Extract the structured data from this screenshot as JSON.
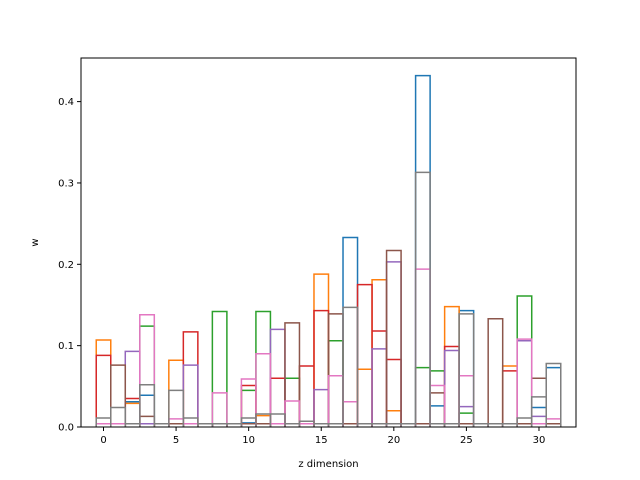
{
  "chart_data": {
    "type": "histogram",
    "title": "",
    "xlabel": "z dimension",
    "ylabel": "w",
    "x_ticks": [
      0,
      5,
      10,
      15,
      20,
      25,
      30
    ],
    "y_ticks": [
      0.0,
      0.1,
      0.2,
      0.3,
      0.4
    ],
    "y_tick_labels": [
      "0.0",
      "0.1",
      "0.2",
      "0.3",
      "0.4"
    ],
    "xlim": [
      -1.55,
      32.55
    ],
    "ylim": [
      0,
      0.4536
    ],
    "bins": 32,
    "series": [
      {
        "color": "#1f77b4",
        "values": [
          0.004,
          0.004,
          0.031,
          0.039,
          0.004,
          0.004,
          0.004,
          0.004,
          0.004,
          0.004,
          0.005,
          0.004,
          0.004,
          0.004,
          0.004,
          0.004,
          0.004,
          0.233,
          0.004,
          0.004,
          0.004,
          0.004,
          0.432,
          0.026,
          0.004,
          0.143,
          0.004,
          0.004,
          0.004,
          0.004,
          0.024,
          0.073
        ]
      },
      {
        "color": "#ff7f0e",
        "values": [
          0.107,
          0.004,
          0.029,
          0.004,
          0.004,
          0.082,
          0.004,
          0.004,
          0.004,
          0.004,
          0.004,
          0.014,
          0.004,
          0.004,
          0.004,
          0.188,
          0.004,
          0.004,
          0.071,
          0.181,
          0.02,
          0.004,
          0.004,
          0.004,
          0.148,
          0.004,
          0.004,
          0.004,
          0.075,
          0.004,
          0.004,
          0.004
        ]
      },
      {
        "color": "#2ca02c",
        "values": [
          0.004,
          0.004,
          0.004,
          0.124,
          0.004,
          0.004,
          0.004,
          0.004,
          0.142,
          0.004,
          0.045,
          0.142,
          0.004,
          0.06,
          0.004,
          0.004,
          0.106,
          0.004,
          0.004,
          0.004,
          0.004,
          0.004,
          0.073,
          0.069,
          0.004,
          0.017,
          0.004,
          0.004,
          0.004,
          0.161,
          0.004,
          0.004
        ]
      },
      {
        "color": "#d62728",
        "values": [
          0.088,
          0.004,
          0.035,
          0.004,
          0.004,
          0.004,
          0.117,
          0.004,
          0.004,
          0.004,
          0.051,
          0.004,
          0.06,
          0.004,
          0.075,
          0.143,
          0.004,
          0.004,
          0.175,
          0.118,
          0.083,
          0.004,
          0.004,
          0.004,
          0.099,
          0.004,
          0.004,
          0.004,
          0.069,
          0.004,
          0.004,
          0.004
        ]
      },
      {
        "color": "#9467bd",
        "values": [
          0.004,
          0.004,
          0.093,
          0.004,
          0.004,
          0.004,
          0.076,
          0.004,
          0.004,
          0.004,
          0.004,
          0.004,
          0.12,
          0.004,
          0.004,
          0.046,
          0.004,
          0.004,
          0.004,
          0.096,
          0.203,
          0.004,
          0.004,
          0.004,
          0.094,
          0.025,
          0.004,
          0.004,
          0.004,
          0.106,
          0.013,
          0.004
        ]
      },
      {
        "color": "#8c564b",
        "values": [
          0.004,
          0.076,
          0.004,
          0.013,
          0.004,
          0.004,
          0.004,
          0.004,
          0.004,
          0.004,
          0.004,
          0.004,
          0.004,
          0.128,
          0.004,
          0.004,
          0.139,
          0.004,
          0.004,
          0.004,
          0.217,
          0.004,
          0.004,
          0.042,
          0.004,
          0.004,
          0.004,
          0.133,
          0.004,
          0.004,
          0.06,
          0.004
        ]
      },
      {
        "color": "#e377c2",
        "values": [
          0.004,
          0.004,
          0.004,
          0.138,
          0.004,
          0.01,
          0.004,
          0.004,
          0.042,
          0.004,
          0.059,
          0.09,
          0.004,
          0.032,
          0.004,
          0.004,
          0.063,
          0.031,
          0.004,
          0.004,
          0.004,
          0.004,
          0.194,
          0.051,
          0.004,
          0.063,
          0.004,
          0.004,
          0.004,
          0.108,
          0.004,
          0.01
        ]
      },
      {
        "color": "#7f7f7f",
        "values": [
          0.011,
          0.024,
          0.004,
          0.052,
          0.004,
          0.045,
          0.011,
          0.004,
          0.004,
          0.004,
          0.011,
          0.016,
          0.016,
          0.004,
          0.007,
          0.004,
          0.004,
          0.147,
          0.004,
          0.004,
          0.004,
          0.004,
          0.313,
          0.004,
          0.004,
          0.139,
          0.004,
          0.004,
          0.004,
          0.011,
          0.037,
          0.078
        ]
      }
    ]
  }
}
